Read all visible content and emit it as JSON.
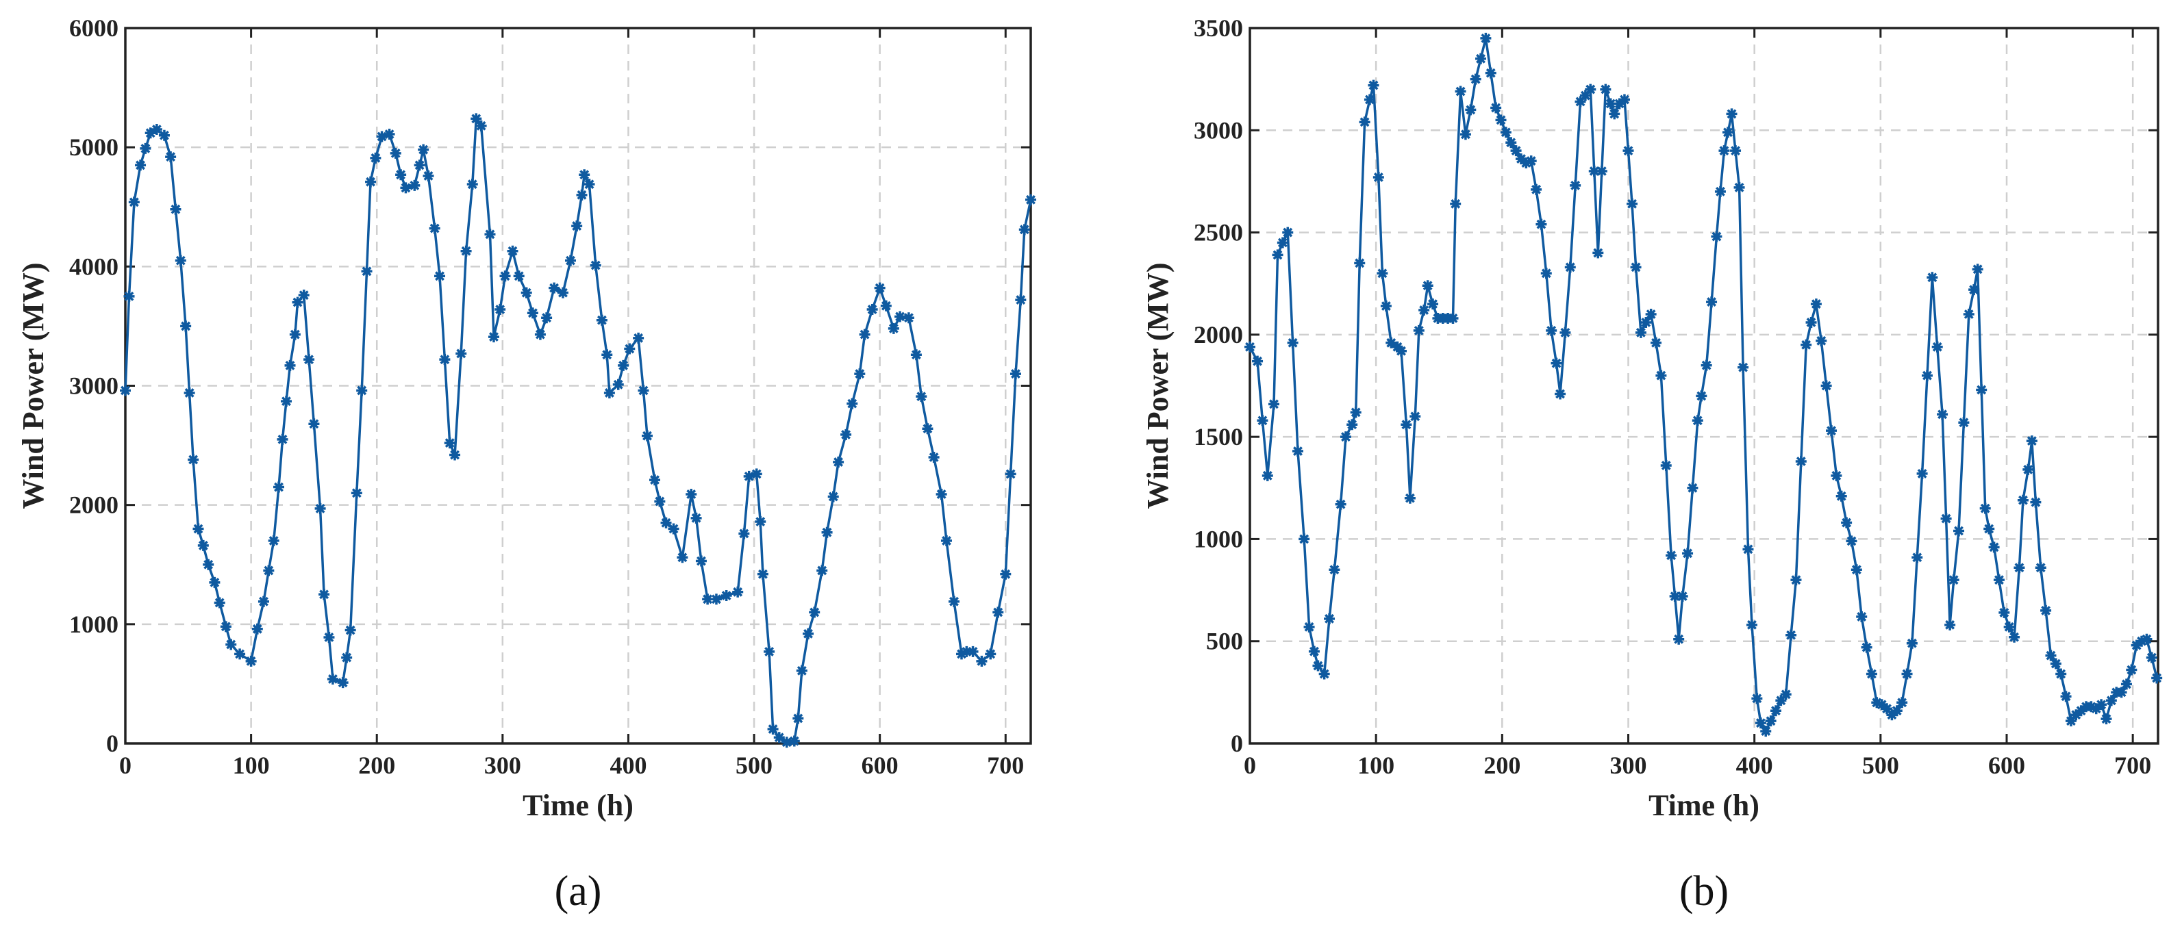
{
  "chart_data": [
    {
      "type": "line",
      "label": "(a)",
      "xlabel": "Time (h)",
      "ylabel": "Wind Power (MW)",
      "color": "#0f5aa0",
      "grid": true,
      "xlim": [
        0,
        720
      ],
      "xticks": [
        0,
        100,
        200,
        300,
        400,
        500,
        600,
        700
      ],
      "ylim": [
        0,
        6000
      ],
      "yticks": [
        0,
        1000,
        2000,
        3000,
        4000,
        5000,
        6000
      ],
      "x": [
        0,
        3,
        7,
        12,
        16,
        20,
        25,
        31,
        36,
        40,
        44,
        48,
        51,
        54,
        58,
        62,
        66,
        71,
        75,
        80,
        84,
        91,
        100,
        105,
        110,
        114,
        118,
        122,
        125,
        128,
        131,
        135,
        137,
        142,
        146,
        150,
        155,
        158,
        162,
        165,
        173,
        176,
        179,
        184,
        188,
        192,
        195,
        199,
        204,
        210,
        215,
        219,
        223,
        230,
        234,
        237,
        241,
        246,
        250,
        254,
        258,
        262,
        267,
        271,
        276,
        279,
        283,
        290,
        293,
        298,
        302,
        308,
        313,
        319,
        324,
        330,
        335,
        341,
        348,
        354,
        359,
        363,
        365,
        369,
        374,
        379,
        383,
        385,
        392,
        396,
        401,
        408,
        412,
        415,
        421,
        425,
        430,
        436,
        443,
        450,
        454,
        458,
        463,
        470,
        478,
        487,
        492,
        496,
        502,
        505,
        507,
        512,
        515,
        520,
        526,
        532,
        535,
        538,
        543,
        548,
        554,
        558,
        563,
        567,
        573,
        578,
        584,
        588,
        594,
        600,
        605,
        611,
        616,
        623,
        629,
        633,
        638,
        643,
        649,
        653,
        659,
        665,
        669,
        674,
        681,
        688,
        694,
        700,
        704,
        708,
        712,
        715,
        720
      ],
      "values": [
        2960,
        3750,
        4540,
        4850,
        4990,
        5120,
        5150,
        5100,
        4920,
        4480,
        4050,
        3500,
        2940,
        2380,
        1800,
        1660,
        1500,
        1350,
        1180,
        980,
        830,
        750,
        690,
        960,
        1190,
        1450,
        1700,
        2150,
        2550,
        2870,
        3170,
        3430,
        3700,
        3760,
        3220,
        2680,
        1970,
        1250,
        890,
        540,
        510,
        720,
        950,
        2100,
        2960,
        3960,
        4710,
        4910,
        5090,
        5110,
        4950,
        4770,
        4660,
        4680,
        4850,
        4980,
        4760,
        4320,
        3920,
        3220,
        2520,
        2420,
        3270,
        4130,
        4690,
        5240,
        5180,
        4270,
        3410,
        3640,
        3920,
        4130,
        3920,
        3780,
        3610,
        3430,
        3570,
        3820,
        3780,
        4050,
        4340,
        4600,
        4770,
        4690,
        4010,
        3550,
        3260,
        2940,
        3010,
        3170,
        3310,
        3400,
        2960,
        2580,
        2210,
        2030,
        1850,
        1800,
        1560,
        2090,
        1890,
        1530,
        1210,
        1210,
        1240,
        1270,
        1760,
        2240,
        2260,
        1860,
        1420,
        770,
        120,
        50,
        10,
        20,
        210,
        610,
        920,
        1100,
        1450,
        1770,
        2070,
        2360,
        2590,
        2850,
        3100,
        3430,
        3640,
        3820,
        3670,
        3480,
        3580,
        3570,
        3260,
        2910,
        2640,
        2400,
        2090,
        1700,
        1190,
        750,
        770,
        770,
        690,
        750,
        1100,
        1420,
        2260,
        3100,
        3720,
        4310,
        4560
      ]
    },
    {
      "type": "line",
      "label": "(b)",
      "xlabel": "Time (h)",
      "ylabel": "Wind Power (MW)",
      "color": "#0f5aa0",
      "grid": true,
      "xlim": [
        0,
        720
      ],
      "xticks": [
        0,
        100,
        200,
        300,
        400,
        500,
        600,
        700
      ],
      "ylim": [
        0,
        3500
      ],
      "yticks": [
        0,
        500,
        1000,
        1500,
        2000,
        2500,
        3000,
        3500
      ],
      "x": [
        0,
        6,
        10,
        14,
        19,
        22,
        26,
        30,
        34,
        38,
        43,
        47,
        51,
        54,
        59,
        63,
        67,
        72,
        76,
        81,
        84,
        87,
        91,
        95,
        98,
        102,
        105,
        108,
        112,
        117,
        120,
        124,
        127,
        131,
        134,
        138,
        141,
        145,
        149,
        153,
        157,
        161,
        163,
        167,
        171,
        175,
        179,
        183,
        187,
        191,
        195,
        199,
        203,
        207,
        211,
        215,
        219,
        223,
        227,
        231,
        235,
        239,
        243,
        246,
        250,
        254,
        258,
        262,
        266,
        270,
        273,
        276,
        279,
        282,
        286,
        289,
        293,
        297,
        300,
        303,
        306,
        310,
        314,
        318,
        322,
        326,
        330,
        334,
        337,
        340,
        343,
        347,
        351,
        355,
        358,
        362,
        366,
        370,
        373,
        376,
        379,
        382,
        385,
        388,
        391,
        395,
        398,
        402,
        405,
        409,
        413,
        417,
        421,
        425,
        429,
        433,
        437,
        441,
        445,
        449,
        453,
        457,
        461,
        465,
        469,
        473,
        477,
        481,
        485,
        489,
        493,
        497,
        501,
        505,
        509,
        513,
        517,
        521,
        525,
        529,
        533,
        537,
        541,
        545,
        549,
        552,
        555,
        558,
        562,
        566,
        570,
        574,
        577,
        580,
        583,
        586,
        590,
        594,
        598,
        602,
        606,
        610,
        613,
        617,
        620,
        623,
        627,
        631,
        635,
        639,
        643,
        647,
        651,
        655,
        659,
        663,
        667,
        671,
        675,
        679,
        683,
        687,
        691,
        695,
        699,
        703,
        707,
        711,
        715,
        719
      ],
      "values": [
        1940,
        1870,
        1580,
        1310,
        1660,
        2390,
        2450,
        2500,
        1960,
        1430,
        1000,
        570,
        450,
        380,
        340,
        610,
        850,
        1170,
        1500,
        1560,
        1620,
        2350,
        3040,
        3150,
        3220,
        2770,
        2300,
        2140,
        1960,
        1940,
        1920,
        1560,
        1200,
        1600,
        2020,
        2120,
        2240,
        2150,
        2080,
        2080,
        2080,
        2080,
        2640,
        3190,
        2980,
        3100,
        3250,
        3350,
        3450,
        3280,
        3110,
        3050,
        2990,
        2940,
        2900,
        2860,
        2840,
        2850,
        2710,
        2540,
        2300,
        2020,
        1860,
        1710,
        2010,
        2330,
        2730,
        3140,
        3170,
        3200,
        2800,
        2400,
        2800,
        3200,
        3130,
        3080,
        3130,
        3150,
        2900,
        2640,
        2330,
        2010,
        2060,
        2100,
        1960,
        1800,
        1360,
        920,
        720,
        510,
        720,
        930,
        1250,
        1580,
        1700,
        1850,
        2160,
        2480,
        2700,
        2900,
        2990,
        3080,
        2900,
        2720,
        1840,
        950,
        580,
        220,
        100,
        60,
        110,
        160,
        210,
        240,
        530,
        800,
        1380,
        1950,
        2060,
        2150,
        1970,
        1750,
        1530,
        1310,
        1210,
        1080,
        990,
        850,
        620,
        470,
        340,
        200,
        190,
        170,
        140,
        160,
        200,
        340,
        490,
        910,
        1320,
        1800,
        2280,
        1940,
        1610,
        1100,
        580,
        800,
        1040,
        1570,
        2100,
        2220,
        2320,
        1730,
        1150,
        1050,
        960,
        800,
        640,
        570,
        520,
        860,
        1190,
        1340,
        1480,
        1180,
        860,
        650,
        430,
        390,
        340,
        230,
        110,
        140,
        160,
        180,
        180,
        170,
        190,
        120,
        210,
        250,
        250,
        290,
        360,
        480,
        500,
        510,
        420,
        320
      ]
    }
  ]
}
